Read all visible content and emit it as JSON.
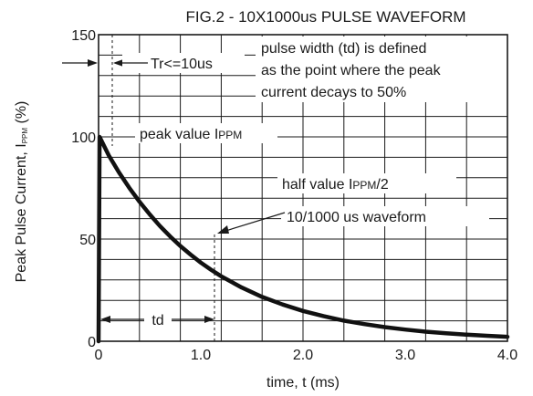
{
  "chart_data": {
    "type": "line",
    "title": "FIG.2 - 10X1000us PULSE WAVEFORM",
    "xlabel": "time, t (ms)",
    "ylabel_main": "Peak Pulse Current, I",
    "ylabel_sub": "PPM",
    "ylabel_unit": " (%)",
    "xlim": [
      0,
      4.0
    ],
    "ylim": [
      0,
      150
    ],
    "x_tick_labels": [
      {
        "value": 0,
        "label": "0"
      },
      {
        "value": 1.0,
        "label": "1.0"
      },
      {
        "value": 2.0,
        "label": "2.0"
      },
      {
        "value": 3.0,
        "label": "3.0"
      },
      {
        "value": 4.0,
        "label": "4.0"
      }
    ],
    "y_tick_labels": [
      {
        "value": 0,
        "label": "0"
      },
      {
        "value": 50,
        "label": "50"
      },
      {
        "value": 100,
        "label": "100"
      },
      {
        "value": 150,
        "label": "150"
      }
    ],
    "x_grid_step": 0.4,
    "y_grid_step": 10,
    "grid": true,
    "series": [
      {
        "x": [
          0,
          0.01,
          0.1,
          0.2,
          0.3,
          0.4,
          0.5,
          0.6,
          0.7,
          0.8,
          0.9,
          1.0,
          1.1,
          1.2,
          1.4,
          1.6,
          1.8,
          2.0,
          2.2,
          2.4,
          2.6,
          2.8,
          3.0,
          3.2,
          3.4,
          3.6,
          3.8,
          4.0
        ],
        "y": [
          0,
          100,
          90.9,
          82.6,
          75.1,
          68.3,
          62.1,
          56.4,
          51.3,
          46.6,
          42.4,
          38.5,
          35.0,
          31.8,
          26.3,
          21.7,
          18.0,
          14.8,
          12.3,
          10.1,
          8.4,
          6.9,
          5.7,
          4.7,
          3.9,
          3.2,
          2.7,
          2.2
        ]
      }
    ],
    "annotations": {
      "tr": "Tr<=10us",
      "pulse_width_lines": [
        "pulse width (td) is defined",
        "as the point where the peak",
        "current decays to 50%"
      ],
      "peak_main": "peak value I",
      "peak_sub": "PPM",
      "half_main": "half value I",
      "half_sub": "PPM",
      "half_tail": "/2",
      "waveform": "10/1000 us waveform",
      "td": "td"
    }
  }
}
